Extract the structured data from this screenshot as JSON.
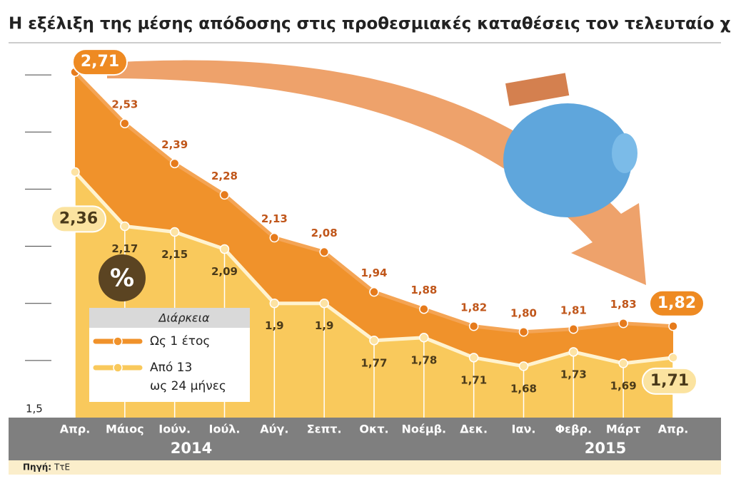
{
  "chart_data": {
    "type": "area",
    "title": "Η εξέλιξη της μέσης απόδοσης στις προθεσμιακές καταθέσεις τον τελευταίο χρόνο",
    "categories": [
      "Απρ.",
      "Μάιος",
      "Ιούν.",
      "Ιούλ.",
      "Αύγ.",
      "Σεπτ.",
      "Οκτ.",
      "Νοέμβ.",
      "Δεκ.",
      "Ιαν.",
      "Φεβρ.",
      "Μάρτ",
      "Απρ."
    ],
    "years": [
      "2014",
      "2015"
    ],
    "series": [
      {
        "name": "Ως 1 έτος",
        "color": "#f0922b",
        "values": [
          2.71,
          2.53,
          2.39,
          2.28,
          2.13,
          2.08,
          1.94,
          1.88,
          1.82,
          1.8,
          1.81,
          1.83,
          1.82
        ],
        "value_labels": [
          "2,71",
          "2,53",
          "2,39",
          "2,28",
          "2,13",
          "2,08",
          "1,94",
          "1,88",
          "1,82",
          "1,80",
          "1,81",
          "1,83",
          "1,82"
        ]
      },
      {
        "name": "Από 13 ως 24 μήνες",
        "color": "#f9c95c",
        "values": [
          2.36,
          2.17,
          2.15,
          2.09,
          1.9,
          1.9,
          1.77,
          1.78,
          1.71,
          1.68,
          1.73,
          1.69,
          1.71
        ],
        "value_labels": [
          "2,36",
          "2,17",
          "2,15",
          "2,09",
          "1,9",
          "1,9",
          "1,77",
          "1,78",
          "1,71",
          "1,68",
          "1,73",
          "1,69",
          "1,71"
        ]
      }
    ],
    "ylim": [
      1.5,
      2.8
    ],
    "yticks": [
      {
        "value": 1.5,
        "label": "1,5"
      }
    ],
    "minor_yticks": [
      1.7,
      1.9,
      2.1,
      2.3,
      2.5,
      2.7
    ],
    "legend_title": "Διάρκεια",
    "badge": "%",
    "source_label": "Πηγή:",
    "source": "ΤτΕ"
  }
}
